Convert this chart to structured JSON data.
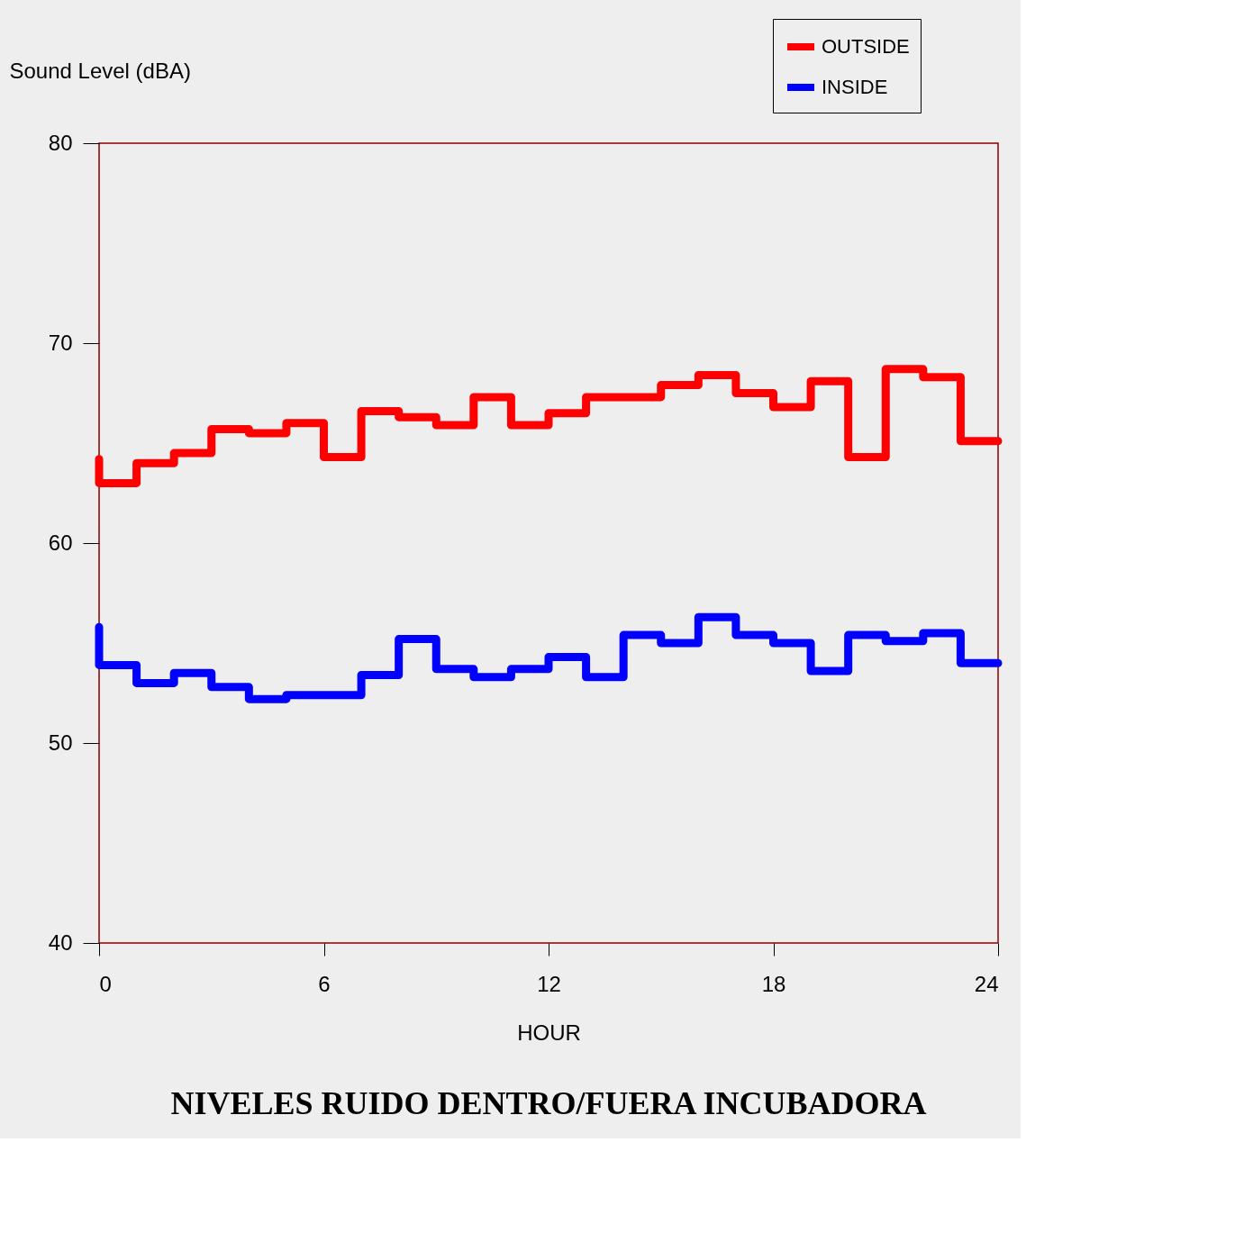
{
  "chart_data": {
    "type": "step",
    "title": "NIVELES RUIDO DENTRO/FUERA INCUBADORA",
    "xlabel": "HOUR",
    "ylabel": "Sound Level (dBA)",
    "series": [
      {
        "name": "OUTSIDE",
        "color": "#ff0000",
        "x": [
          0,
          0,
          1,
          2,
          3,
          4,
          5,
          6,
          7,
          8,
          9,
          10,
          11,
          12,
          13,
          14,
          15,
          16,
          17,
          18,
          19,
          20,
          21,
          22,
          23,
          24
        ],
        "values": [
          64.2,
          63.0,
          64.0,
          64.5,
          65.7,
          65.5,
          66.0,
          64.3,
          66.6,
          66.3,
          65.9,
          67.3,
          65.9,
          66.5,
          67.3,
          67.3,
          67.9,
          68.4,
          67.5,
          66.8,
          68.1,
          64.3,
          68.7,
          68.3,
          65.1,
          65.1
        ]
      },
      {
        "name": "INSIDE",
        "color": "#0000ff",
        "x": [
          0,
          0,
          1,
          2,
          3,
          4,
          5,
          6,
          7,
          8,
          9,
          10,
          11,
          12,
          13,
          14,
          15,
          16,
          17,
          18,
          19,
          20,
          21,
          22,
          23,
          24
        ],
        "values": [
          55.8,
          53.9,
          53.0,
          53.5,
          52.8,
          52.2,
          52.4,
          52.4,
          53.4,
          55.2,
          53.7,
          53.3,
          53.7,
          54.3,
          53.3,
          55.4,
          55.0,
          56.3,
          55.4,
          55.0,
          53.6,
          55.4,
          55.1,
          55.5,
          54.0,
          54.0
        ]
      }
    ],
    "xlim": [
      0,
      24
    ],
    "xticks": [
      0,
      6,
      12,
      18,
      24
    ],
    "ylim": [
      40,
      80
    ],
    "yticks": [
      40,
      50,
      60,
      70,
      80
    ],
    "grid": false,
    "legend": "top right",
    "line_style": "solid"
  }
}
